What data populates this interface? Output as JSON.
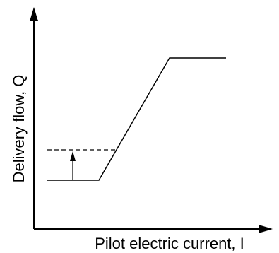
{
  "axes": {
    "x_label": "Pilot electric current, I",
    "y_label": "Delivery flow, Q"
  },
  "colors": {
    "stroke": "#000000",
    "background": "#ffffff"
  }
}
